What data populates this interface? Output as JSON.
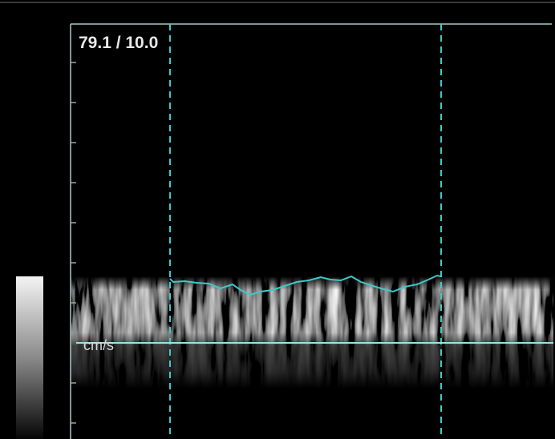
{
  "readout": "79.1 / 10.0",
  "unit_label": "cm/s"
}
